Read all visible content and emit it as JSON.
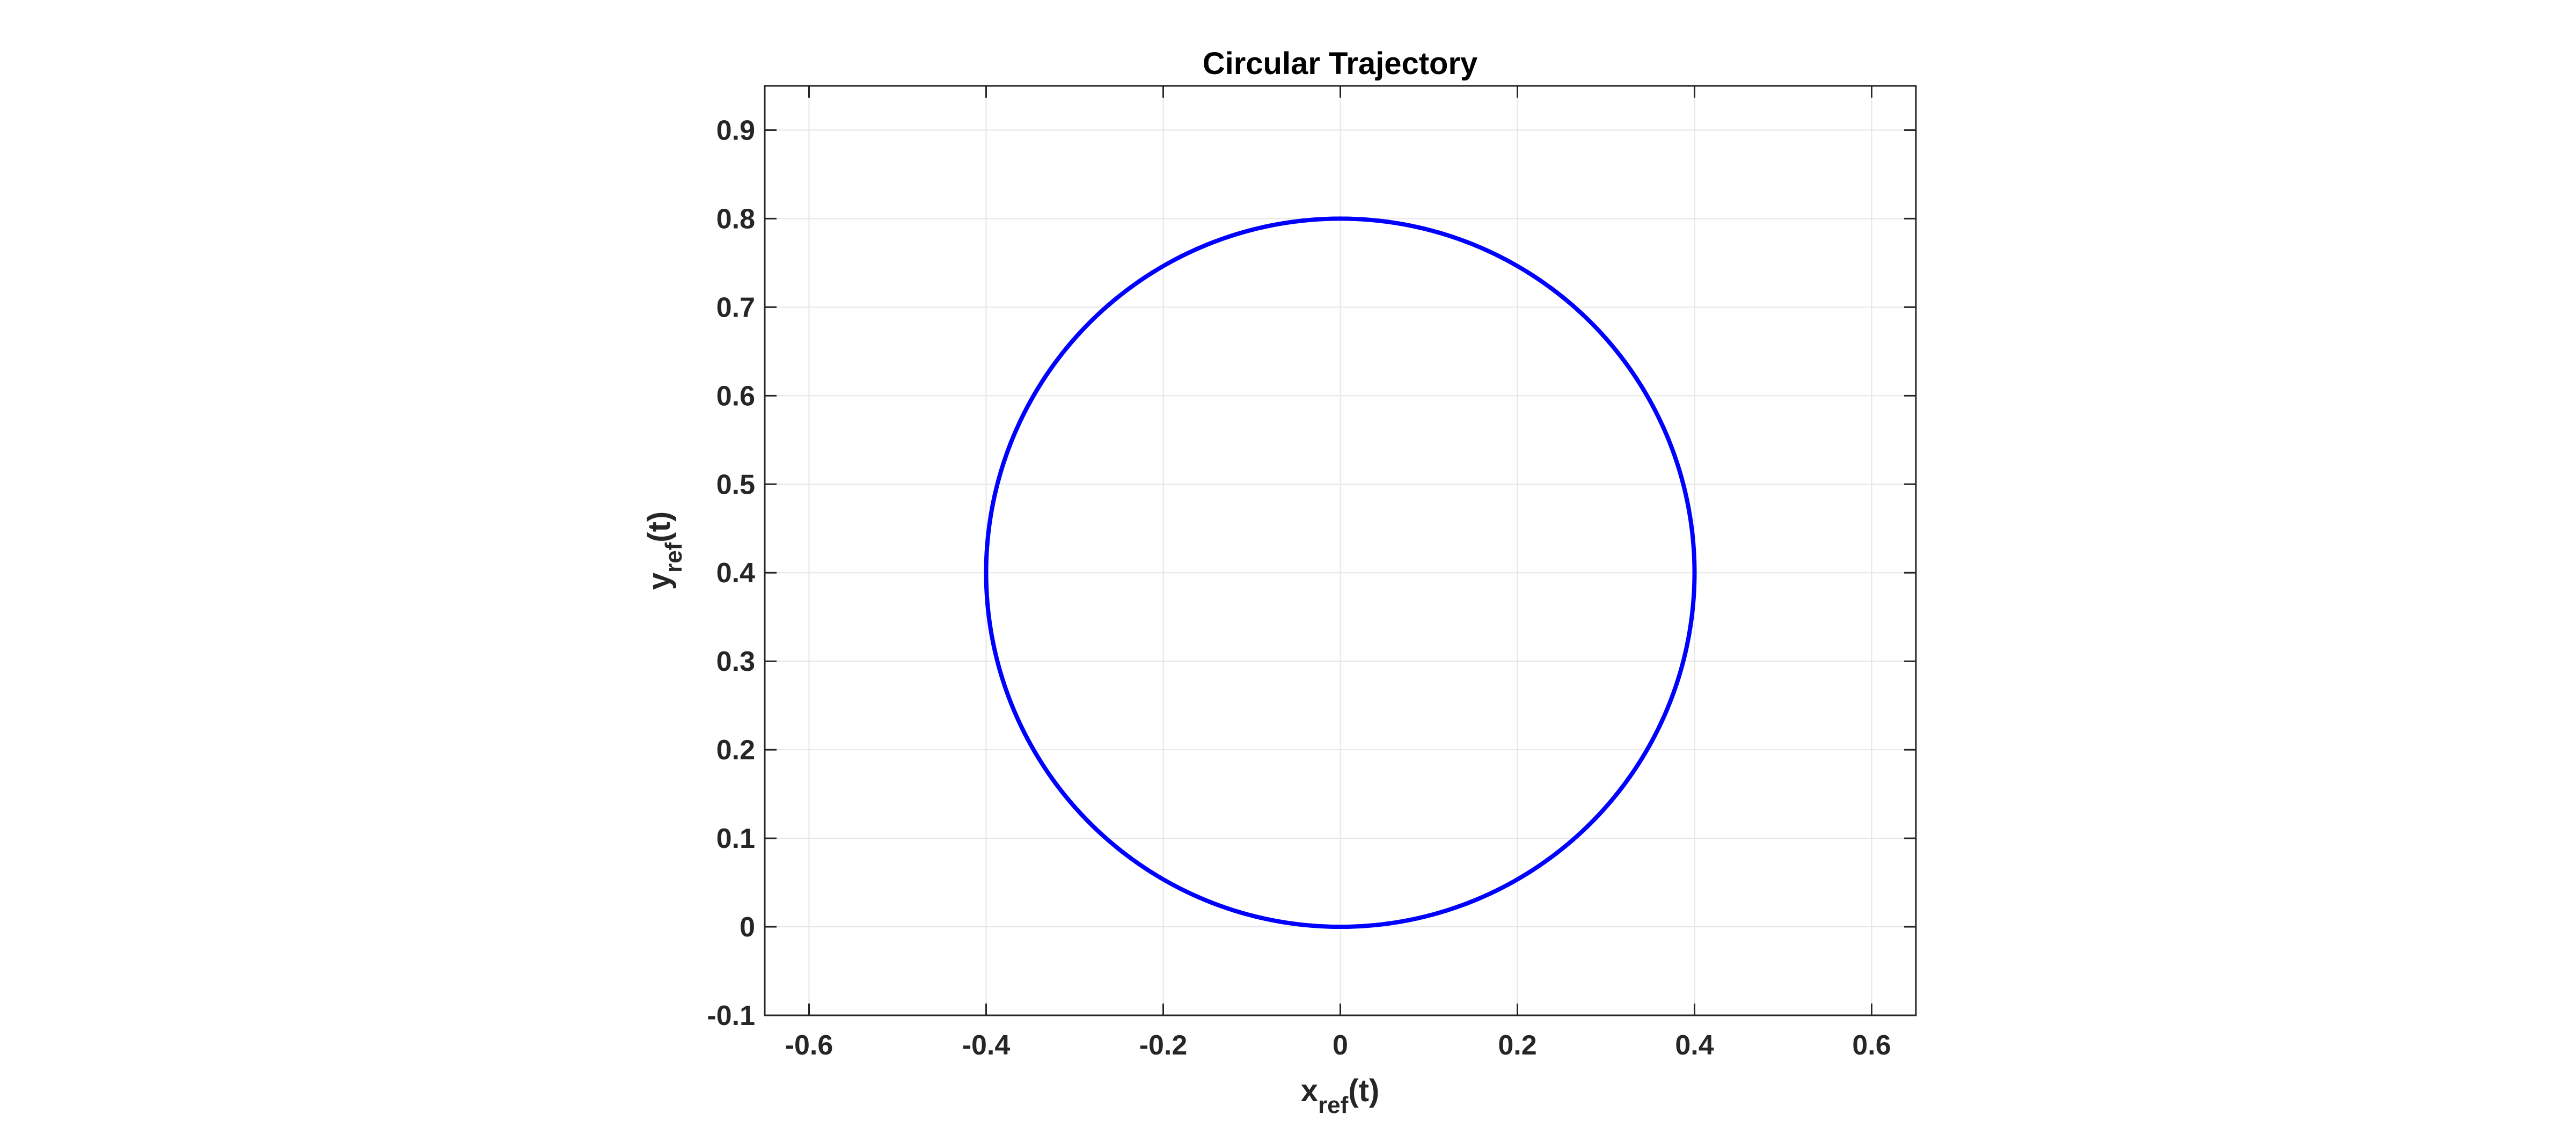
{
  "chart_data": {
    "type": "line",
    "title": "Circular Trajectory",
    "xlabel": {
      "base": "x",
      "sub": "ref",
      "suffix": "(t)"
    },
    "ylabel": {
      "base": "y",
      "sub": "ref",
      "suffix": "(t)"
    },
    "xlim": [
      -0.65,
      0.65
    ],
    "ylim": [
      -0.1,
      0.95
    ],
    "xticks": [
      -0.6,
      -0.4,
      -0.2,
      0,
      0.2,
      0.4,
      0.6
    ],
    "xtick_labels": [
      "-0.6",
      "-0.4",
      "-0.2",
      "0",
      "0.2",
      "0.4",
      "0.6"
    ],
    "yticks": [
      -0.1,
      0,
      0.1,
      0.2,
      0.3,
      0.4,
      0.5,
      0.6,
      0.7,
      0.8,
      0.9
    ],
    "ytick_labels": [
      "-0.1",
      "0",
      "0.1",
      "0.2",
      "0.3",
      "0.4",
      "0.5",
      "0.6",
      "0.7",
      "0.8",
      "0.9"
    ],
    "grid": true,
    "series": [
      {
        "shape": "circle",
        "center": [
          0,
          0.4
        ],
        "radius": 0.4,
        "color": "#0000ff"
      }
    ]
  }
}
